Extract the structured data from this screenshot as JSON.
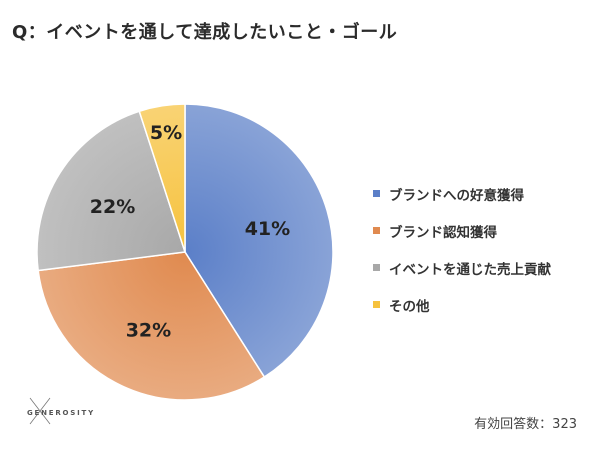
{
  "title": "Q：イベントを通して達成したいこと・ゴール",
  "chart_data": {
    "type": "pie",
    "categories": [
      "ブランドへの好意獲得",
      "ブランド認知獲得",
      "イベントを通じた売上貢献",
      "その他"
    ],
    "values": [
      41,
      32,
      22,
      5
    ],
    "labels": [
      "41%",
      "32%",
      "22%",
      "5%"
    ],
    "colors": [
      "#5b7fc8",
      "#e08a4f",
      "#a8a8a8",
      "#f6c23e"
    ],
    "title": "Q：イベントを通して達成したいこと・ゴール",
    "legend_position": "right",
    "start": "12 o'clock, clockwise"
  },
  "legend": [
    {
      "label": "ブランドへの好意獲得",
      "color": "#5b7fc8"
    },
    {
      "label": "ブランド認知獲得",
      "color": "#e08a4f"
    },
    {
      "label": "イベントを通じた売上貢献",
      "color": "#a8a8a8"
    },
    {
      "label": "その他",
      "color": "#f6c23e"
    }
  ],
  "logo": {
    "text": "GENEROSITY"
  },
  "footer": {
    "respondents": "有効回答数：323"
  }
}
